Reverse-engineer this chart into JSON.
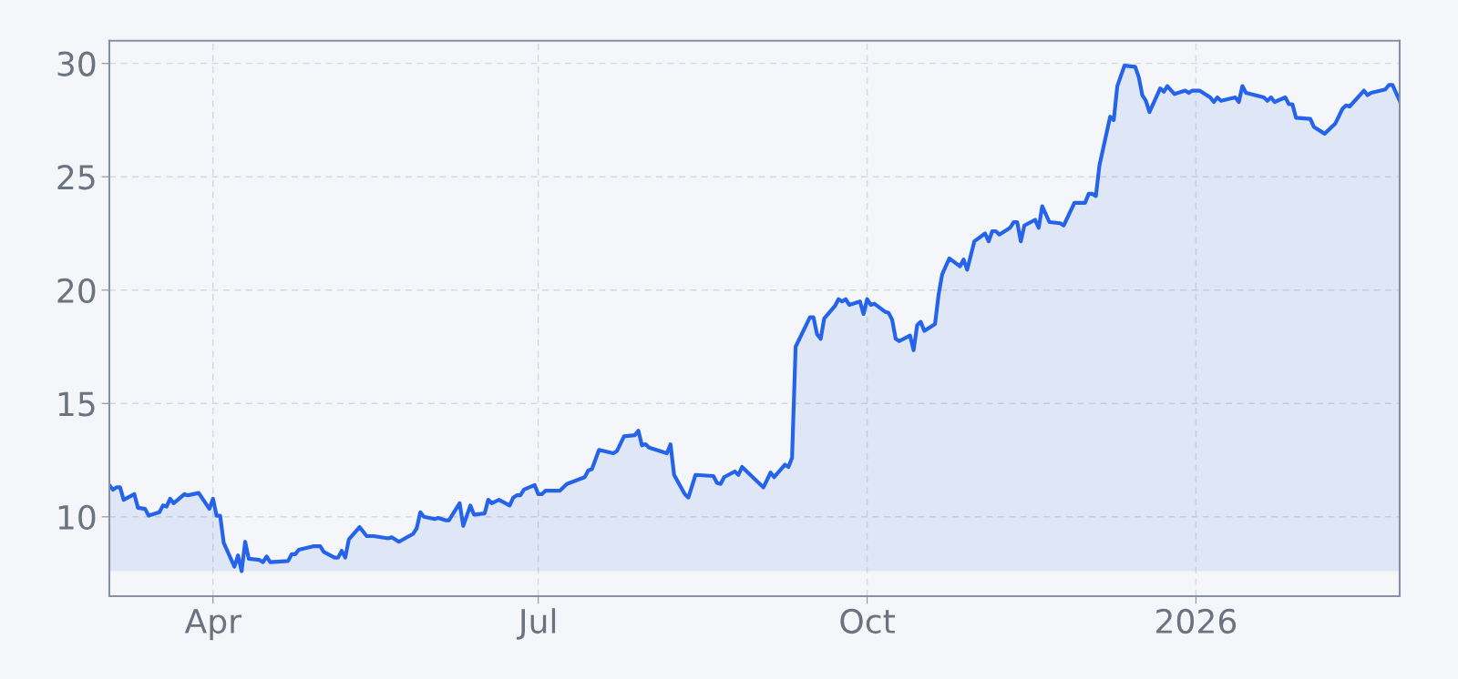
{
  "chart_data": {
    "type": "area",
    "x": [
      "2025-03-03",
      "2025-03-04",
      "2025-03-05",
      "2025-03-06",
      "2025-03-07",
      "2025-03-10",
      "2025-03-11",
      "2025-03-13",
      "2025-03-14",
      "2025-03-17",
      "2025-03-18",
      "2025-03-19",
      "2025-03-20",
      "2025-03-21",
      "2025-03-24",
      "2025-03-25",
      "2025-03-28",
      "2025-03-31",
      "2025-04-01",
      "2025-04-02",
      "2025-04-03",
      "2025-04-04",
      "2025-04-07",
      "2025-04-08",
      "2025-04-09",
      "2025-04-10",
      "2025-04-11",
      "2025-04-14",
      "2025-04-15",
      "2025-04-16",
      "2025-04-17",
      "2025-04-22",
      "2025-04-23",
      "2025-04-24",
      "2025-04-25",
      "2025-04-29",
      "2025-05-01",
      "2025-05-02",
      "2025-05-05",
      "2025-05-06",
      "2025-05-07",
      "2025-05-08",
      "2025-05-09",
      "2025-05-12",
      "2025-05-14",
      "2025-05-16",
      "2025-05-20",
      "2025-05-21",
      "2025-05-23",
      "2025-05-27",
      "2025-05-28",
      "2025-05-29",
      "2025-05-30",
      "2025-06-02",
      "2025-06-03",
      "2025-06-05",
      "2025-06-06",
      "2025-06-09",
      "2025-06-10",
      "2025-06-12",
      "2025-06-13",
      "2025-06-16",
      "2025-06-17",
      "2025-06-18",
      "2025-06-20",
      "2025-06-23",
      "2025-06-24",
      "2025-06-25",
      "2025-06-26",
      "2025-06-27",
      "2025-06-30",
      "2025-07-01",
      "2025-07-02",
      "2025-07-03",
      "2025-07-07",
      "2025-07-09",
      "2025-07-14",
      "2025-07-15",
      "2025-07-16",
      "2025-07-18",
      "2025-07-22",
      "2025-07-23",
      "2025-07-25",
      "2025-07-28",
      "2025-07-29",
      "2025-07-30",
      "2025-07-31",
      "2025-08-01",
      "2025-08-05",
      "2025-08-06",
      "2025-08-07",
      "2025-08-08",
      "2025-08-11",
      "2025-08-12",
      "2025-08-14",
      "2025-08-19",
      "2025-08-20",
      "2025-08-21",
      "2025-08-22",
      "2025-08-25",
      "2025-08-26",
      "2025-08-27",
      "2025-09-02",
      "2025-09-04",
      "2025-09-05",
      "2025-09-08",
      "2025-09-09",
      "2025-09-10",
      "2025-09-11",
      "2025-09-15",
      "2025-09-16",
      "2025-09-17",
      "2025-09-18",
      "2025-09-19",
      "2025-09-22",
      "2025-09-23",
      "2025-09-24",
      "2025-09-25",
      "2025-09-26",
      "2025-09-29",
      "2025-09-30",
      "2025-10-01",
      "2025-10-02",
      "2025-10-03",
      "2025-10-06",
      "2025-10-07",
      "2025-10-08",
      "2025-10-09",
      "2025-10-10",
      "2025-10-13",
      "2025-10-14",
      "2025-10-15",
      "2025-10-16",
      "2025-10-17",
      "2025-10-20",
      "2025-10-21",
      "2025-10-22",
      "2025-10-24",
      "2025-10-27",
      "2025-10-28",
      "2025-10-29",
      "2025-10-31",
      "2025-11-03",
      "2025-11-04",
      "2025-11-05",
      "2025-11-06",
      "2025-11-07",
      "2025-11-10",
      "2025-11-11",
      "2025-11-12",
      "2025-11-13",
      "2025-11-14",
      "2025-11-17",
      "2025-11-18",
      "2025-11-19",
      "2025-11-21",
      "2025-11-24",
      "2025-11-25",
      "2025-11-28",
      "2025-12-01",
      "2025-12-02",
      "2025-12-03",
      "2025-12-04",
      "2025-12-05",
      "2025-12-08",
      "2025-12-09",
      "2025-12-10",
      "2025-12-12",
      "2025-12-15",
      "2025-12-16",
      "2025-12-17",
      "2025-12-18",
      "2025-12-19",
      "2025-12-22",
      "2025-12-23",
      "2025-12-24",
      "2025-12-26",
      "2025-12-29",
      "2025-12-30",
      "2025-12-31",
      "2026-01-02",
      "2026-01-05",
      "2026-01-06",
      "2026-01-07",
      "2026-01-08",
      "2026-01-12",
      "2026-01-13",
      "2026-01-14",
      "2026-01-15",
      "2026-01-20",
      "2026-01-21",
      "2026-01-22",
      "2026-01-23",
      "2026-01-26",
      "2026-01-27",
      "2026-01-28",
      "2026-01-29",
      "2026-02-02",
      "2026-02-03",
      "2026-02-06",
      "2026-02-09",
      "2026-02-11",
      "2026-02-12",
      "2026-02-13",
      "2026-02-17",
      "2026-02-18",
      "2026-02-19",
      "2026-02-23",
      "2026-02-24",
      "2026-02-25",
      "2026-02-27"
    ],
    "series": [
      {
        "color": "#2563eb",
        "values": [
          11.4,
          11.2,
          11.3,
          11.3,
          10.75,
          11.0,
          10.4,
          10.35,
          10.05,
          10.2,
          10.5,
          10.45,
          10.8,
          10.6,
          11.0,
          10.95,
          11.05,
          10.35,
          10.8,
          10.05,
          10.05,
          8.85,
          7.8,
          8.3,
          7.6,
          8.9,
          8.15,
          8.1,
          8.0,
          8.25,
          8.0,
          8.05,
          8.35,
          8.35,
          8.55,
          8.7,
          8.7,
          8.45,
          8.2,
          8.2,
          8.5,
          8.2,
          9.0,
          9.55,
          9.15,
          9.15,
          9.05,
          9.1,
          8.9,
          9.25,
          9.5,
          10.2,
          10.0,
          9.9,
          9.95,
          9.85,
          9.85,
          10.6,
          9.6,
          10.5,
          10.1,
          10.15,
          10.75,
          10.6,
          10.75,
          10.5,
          10.85,
          10.95,
          10.95,
          11.2,
          11.4,
          11.0,
          11.0,
          11.15,
          11.15,
          11.45,
          11.75,
          12.05,
          12.1,
          12.95,
          12.8,
          12.9,
          13.55,
          13.6,
          13.8,
          13.15,
          13.2,
          13.05,
          12.85,
          12.8,
          13.2,
          11.85,
          11.0,
          10.85,
          11.85,
          11.8,
          11.5,
          11.45,
          11.75,
          12.0,
          11.85,
          12.2,
          11.3,
          11.95,
          11.75,
          12.3,
          12.2,
          12.6,
          17.5,
          18.8,
          18.8,
          18.05,
          17.85,
          18.75,
          19.3,
          19.6,
          19.5,
          19.6,
          19.35,
          19.5,
          18.95,
          19.6,
          19.35,
          19.4,
          19.05,
          19.0,
          18.7,
          17.85,
          17.75,
          18.0,
          17.35,
          18.45,
          18.6,
          18.2,
          18.5,
          19.8,
          20.7,
          21.4,
          21.05,
          21.35,
          20.9,
          22.15,
          22.5,
          22.15,
          22.6,
          22.6,
          22.45,
          22.75,
          23.0,
          23.0,
          22.15,
          22.85,
          23.1,
          22.75,
          23.7,
          23.0,
          22.95,
          22.85,
          23.85,
          23.85,
          24.25,
          24.25,
          24.15,
          25.5,
          27.65,
          27.5,
          29.0,
          29.9,
          29.85,
          29.4,
          28.6,
          28.35,
          27.85,
          28.9,
          28.75,
          29.0,
          28.65,
          28.8,
          28.7,
          28.8,
          28.8,
          28.5,
          28.3,
          28.5,
          28.35,
          28.5,
          28.3,
          29.0,
          28.7,
          28.5,
          28.35,
          28.5,
          28.3,
          28.5,
          28.2,
          28.2,
          27.6,
          27.55,
          27.2,
          26.9,
          27.35,
          28.0,
          28.15,
          28.1,
          28.8,
          28.6,
          28.7,
          28.85,
          29.05,
          29.05,
          28.35
        ]
      }
    ],
    "xlim": [
      "2025-03-03",
      "2026-02-27"
    ],
    "xticks": [
      {
        "value": "2025-04-01",
        "label": "Apr"
      },
      {
        "value": "2025-07-01",
        "label": "Jul"
      },
      {
        "value": "2025-10-01",
        "label": "Oct"
      },
      {
        "value": "2026-01-01",
        "label": "2026"
      }
    ],
    "ylim": [
      6.5,
      31
    ],
    "yticks": [
      10,
      15,
      20,
      25,
      30
    ],
    "grid": true,
    "legend": false
  }
}
